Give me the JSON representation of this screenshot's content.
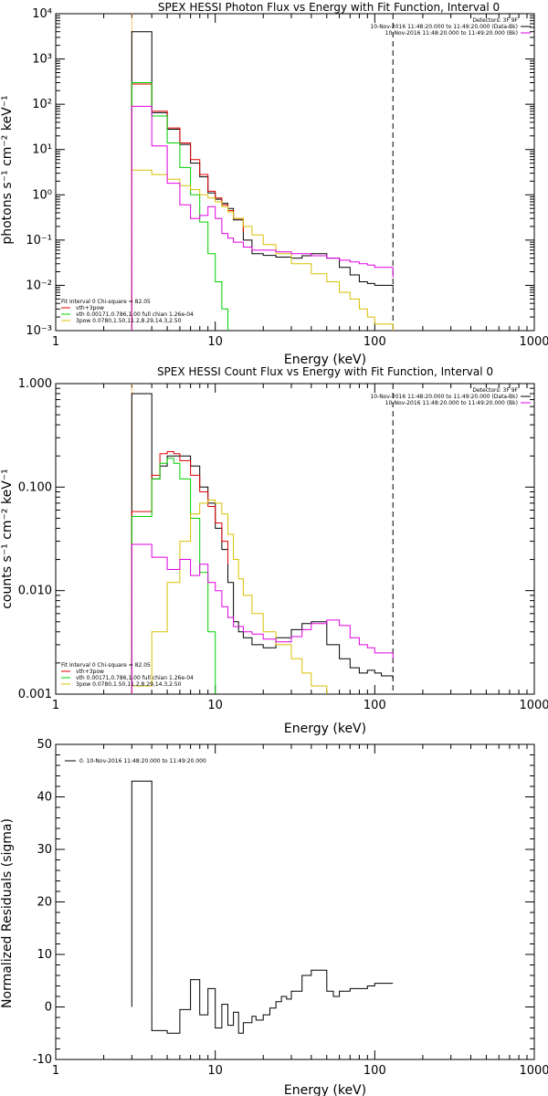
{
  "chart_data": [
    {
      "type": "line",
      "title": "SPEX HESSI Photon Flux vs Energy with Fit Function, Interval 0",
      "xlabel": "Energy (keV)",
      "ylabel": "photons s⁻¹ cm⁻² keV⁻¹",
      "x_scale": "log",
      "y_scale": "log",
      "xlim": [
        1,
        1000
      ],
      "ylim": [
        0.001,
        10000
      ],
      "x_tick_labels": [
        "1",
        "10",
        "100",
        "1000"
      ],
      "y_tick_labels": [
        "10⁻³",
        "10⁻²",
        "10⁻¹",
        "10⁰",
        "10¹",
        "10²",
        "10³",
        "10⁴"
      ],
      "vlines": [
        {
          "x": 3,
          "style": "dotted",
          "color": "#ff8c00"
        },
        {
          "x": 130,
          "style": "dashed",
          "color": "#000000"
        }
      ],
      "legend_top_right": [
        {
          "label": "Detectors: 3F 9F",
          "color": ""
        },
        {
          "label": "10-Nov-2016 11:48:20.000 to 11:49:20.000 (Data-Bk)",
          "color": "#000000"
        },
        {
          "label": "10-Nov-2016 11:48:20.000 to 11:49:20.000 (Bk)",
          "color": "#e000e0"
        }
      ],
      "legend_bottom_left": [
        {
          "label": "Fit Interval 0   Chi-square = 82.05",
          "color": ""
        },
        {
          "label": "vth+3pow",
          "color": "#e00000"
        },
        {
          "label": "vth 0.00171,0.786,1.00  full chian 1.26e-04",
          "color": "#00d000"
        },
        {
          "label": "3pow 0.0780,1.50,11.2,8.29,14.3,2.50",
          "color": "#d8c000"
        }
      ],
      "series": [
        {
          "color": "#000000",
          "x": [
            3,
            4,
            5,
            6,
            7,
            8,
            9,
            10,
            11,
            12,
            13,
            15,
            17,
            20,
            24,
            30,
            35,
            40,
            50,
            60,
            70,
            80,
            90,
            100,
            130
          ],
          "y": [
            4000,
            65,
            28,
            13,
            5,
            2.5,
            1.1,
            0.8,
            0.65,
            0.5,
            0.28,
            0.1,
            0.05,
            0.046,
            0.042,
            0.04,
            0.045,
            0.05,
            0.04,
            0.025,
            0.017,
            0.012,
            0.011,
            0.01,
            0.009
          ]
        },
        {
          "color": "#e00000",
          "x": [
            3,
            4,
            5,
            6,
            7,
            8,
            9,
            10,
            11,
            12,
            13,
            15
          ],
          "y": [
            280,
            70,
            30,
            14,
            6,
            2.8,
            1.2,
            0.85,
            0.6,
            0.45,
            0.3,
            0.15
          ]
        },
        {
          "color": "#00d000",
          "x": [
            3,
            4,
            5,
            6,
            7,
            8,
            9,
            10,
            11,
            12
          ],
          "y": [
            300,
            55,
            14,
            4,
            1,
            0.25,
            0.05,
            0.012,
            0.003,
            0.0008
          ]
        },
        {
          "color": "#d8c000",
          "x": [
            3,
            4,
            5,
            6,
            7,
            8,
            9,
            10,
            11,
            12,
            13,
            15,
            17,
            20,
            24,
            30,
            40,
            50,
            60,
            70,
            80,
            90,
            100,
            130
          ],
          "y": [
            3.5,
            2.8,
            2.2,
            1.6,
            1.3,
            1.0,
            0.85,
            0.7,
            0.55,
            0.42,
            0.3,
            0.2,
            0.13,
            0.08,
            0.05,
            0.03,
            0.018,
            0.012,
            0.007,
            0.005,
            0.003,
            0.002,
            0.0014,
            0.001
          ]
        },
        {
          "color": "#e000e0",
          "x": [
            3,
            4,
            5,
            6,
            7,
            8,
            9,
            10,
            11,
            12,
            13,
            15,
            17,
            20,
            24,
            30,
            35,
            40,
            50,
            60,
            70,
            80,
            90,
            100,
            130
          ],
          "y": [
            90,
            12,
            1.8,
            0.6,
            0.3,
            0.35,
            0.55,
            0.3,
            0.14,
            0.11,
            0.09,
            0.07,
            0.06,
            0.06,
            0.055,
            0.05,
            0.05,
            0.045,
            0.04,
            0.036,
            0.033,
            0.03,
            0.028,
            0.025,
            0.015
          ]
        }
      ]
    },
    {
      "type": "line",
      "title": "SPEX HESSI Count Flux vs Energy with Fit Function, Interval 0",
      "xlabel": "Energy (keV)",
      "ylabel": "counts s⁻¹ cm⁻² keV⁻¹",
      "x_scale": "log",
      "y_scale": "log",
      "xlim": [
        1,
        1000
      ],
      "ylim": [
        0.001,
        1
      ],
      "x_tick_labels": [
        "1",
        "10",
        "100",
        "1000"
      ],
      "y_tick_labels": [
        "0.001",
        "0.010",
        "0.100",
        "1.000"
      ],
      "vlines": [
        {
          "x": 3,
          "style": "dotted",
          "color": "#ff8c00"
        },
        {
          "x": 130,
          "style": "dashed",
          "color": "#000000"
        }
      ],
      "legend_top_right": [
        {
          "label": "Detectors: 3F 9F",
          "color": ""
        },
        {
          "label": "10-Nov-2016 11:48:20.000 to 11:49:20.000 (Data-Bk)",
          "color": "#000000"
        },
        {
          "label": "10-Nov-2016 11:48:20.000 to 11:49:20.000 (Bk)",
          "color": "#e000e0"
        }
      ],
      "legend_bottom_left": [
        {
          "label": "Fit Interval 0   Chi-square = 82.05",
          "color": ""
        },
        {
          "label": "vth+3pow",
          "color": "#e00000"
        },
        {
          "label": "vth 0.00171,0.786,1.00  full chian 1.26e-04",
          "color": "#00d000"
        },
        {
          "label": "3pow 0.0780,1.50,11.2,8.29,14.3,2.50",
          "color": "#d8c000"
        }
      ],
      "series": [
        {
          "color": "#000000",
          "x": [
            3,
            4,
            4.5,
            5,
            5.5,
            6,
            7,
            8,
            9,
            10,
            11,
            12,
            13,
            14,
            15,
            17,
            20,
            24,
            30,
            35,
            40,
            50,
            60,
            70,
            80,
            90,
            100,
            110,
            130
          ],
          "y": [
            0.8,
            0.12,
            0.16,
            0.2,
            0.2,
            0.2,
            0.16,
            0.1,
            0.07,
            0.04,
            0.025,
            0.012,
            0.005,
            0.004,
            0.0035,
            0.003,
            0.0028,
            0.0035,
            0.0042,
            0.0048,
            0.005,
            0.003,
            0.0022,
            0.0018,
            0.0016,
            0.0017,
            0.0016,
            0.0015,
            0.0014
          ]
        },
        {
          "color": "#e00000",
          "x": [
            3,
            4,
            4.5,
            5,
            5.5,
            6,
            7,
            8,
            9,
            10,
            11,
            12
          ],
          "y": [
            0.058,
            0.13,
            0.21,
            0.22,
            0.21,
            0.18,
            0.13,
            0.09,
            0.065,
            0.045,
            0.03,
            0.018
          ]
        },
        {
          "color": "#00d000",
          "x": [
            3,
            4,
            4.5,
            5,
            5.5,
            6,
            7,
            8,
            9,
            10
          ],
          "y": [
            0.052,
            0.12,
            0.17,
            0.19,
            0.17,
            0.12,
            0.05,
            0.015,
            0.004,
            0.0008
          ]
        },
        {
          "color": "#d8c000",
          "x": [
            3,
            4,
            5,
            6,
            7,
            8,
            9,
            10,
            11,
            12,
            13,
            14,
            15,
            17,
            20,
            24,
            30,
            35,
            40,
            50
          ],
          "y": [
            0.0012,
            0.004,
            0.012,
            0.03,
            0.055,
            0.07,
            0.075,
            0.07,
            0.055,
            0.035,
            0.02,
            0.013,
            0.009,
            0.006,
            0.004,
            0.003,
            0.0022,
            0.0016,
            0.0012,
            0.001
          ]
        },
        {
          "color": "#e000e0",
          "x": [
            3,
            4,
            5,
            6,
            7,
            8,
            9,
            10,
            11,
            12,
            13,
            15,
            17,
            20,
            24,
            30,
            35,
            40,
            50,
            60,
            70,
            80,
            90,
            100,
            130
          ],
          "y": [
            0.028,
            0.021,
            0.016,
            0.02,
            0.014,
            0.018,
            0.012,
            0.01,
            0.007,
            0.0055,
            0.0045,
            0.004,
            0.0038,
            0.0034,
            0.0032,
            0.0036,
            0.0042,
            0.0048,
            0.0052,
            0.0046,
            0.0035,
            0.003,
            0.0028,
            0.0025,
            0.0022
          ]
        }
      ]
    },
    {
      "type": "line",
      "title": "",
      "xlabel": "Energy (keV)",
      "ylabel": "Normalized Residuals (sigma)",
      "x_scale": "log",
      "y_scale": "linear",
      "xlim": [
        1,
        1000
      ],
      "ylim": [
        -10,
        50
      ],
      "x_tick_labels": [
        "1",
        "10",
        "100",
        "1000"
      ],
      "y_tick_labels": [
        "-10",
        "0",
        "10",
        "20",
        "30",
        "40",
        "50"
      ],
      "legend_top_left": [
        {
          "label": "0. 10-Nov-2016 11:48:20.000 to 11:49:20.000",
          "color": "#000000"
        }
      ],
      "series": [
        {
          "color": "#000000",
          "x": [
            3,
            4,
            5,
            6,
            7,
            8,
            9,
            10,
            11,
            12,
            13,
            14,
            15,
            17,
            18,
            20,
            22,
            24,
            26,
            28,
            30,
            35,
            40,
            50,
            55,
            60,
            70,
            80,
            90,
            100,
            130
          ],
          "y": [
            43,
            -4.5,
            -5,
            -0.5,
            5.2,
            -1.5,
            3.5,
            -4,
            0.5,
            -3.5,
            -1,
            -5,
            -3,
            -1.8,
            -2.5,
            -1.5,
            -0.2,
            1,
            2,
            1.5,
            3,
            6,
            7,
            3,
            2,
            3,
            3.5,
            3.5,
            4,
            4.5,
            4.5
          ]
        }
      ]
    }
  ]
}
